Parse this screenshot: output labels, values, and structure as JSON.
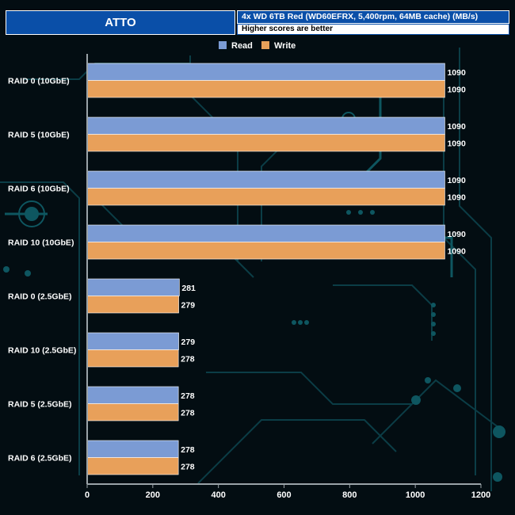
{
  "header": {
    "title": "ATTO",
    "subtitle": "4x WD 6TB Red (WD60EFRX, 5,400rpm, 64MB cache) (MB/s)",
    "note": "Higher scores are better"
  },
  "colors": {
    "read": "#7b9bd4",
    "write": "#e8a05a",
    "header_bg": "#0a4fa8",
    "label_text": "#ffffff"
  },
  "chart_data": {
    "type": "bar",
    "orientation": "horizontal",
    "categories": [
      "RAID 0 (10GbE)",
      "RAID 5 (10GbE)",
      "RAID 6 (10GbE)",
      "RAID 10 (10GbE)",
      "RAID 0 (2.5GbE)",
      "RAID 10 (2.5GbE)",
      "RAID 5 (2.5GbE)",
      "RAID 6 (2.5GbE)"
    ],
    "series": [
      {
        "name": "Read",
        "values": [
          1090,
          1090,
          1090,
          1090,
          281,
          279,
          278,
          278
        ]
      },
      {
        "name": "Write",
        "values": [
          1090,
          1090,
          1090,
          1090,
          279,
          278,
          278,
          278
        ]
      }
    ],
    "xlim": [
      0,
      1200
    ],
    "xticks": [
      0,
      200,
      400,
      600,
      800,
      1000,
      1200
    ],
    "legend_position": "top-center",
    "data_labels": true
  }
}
